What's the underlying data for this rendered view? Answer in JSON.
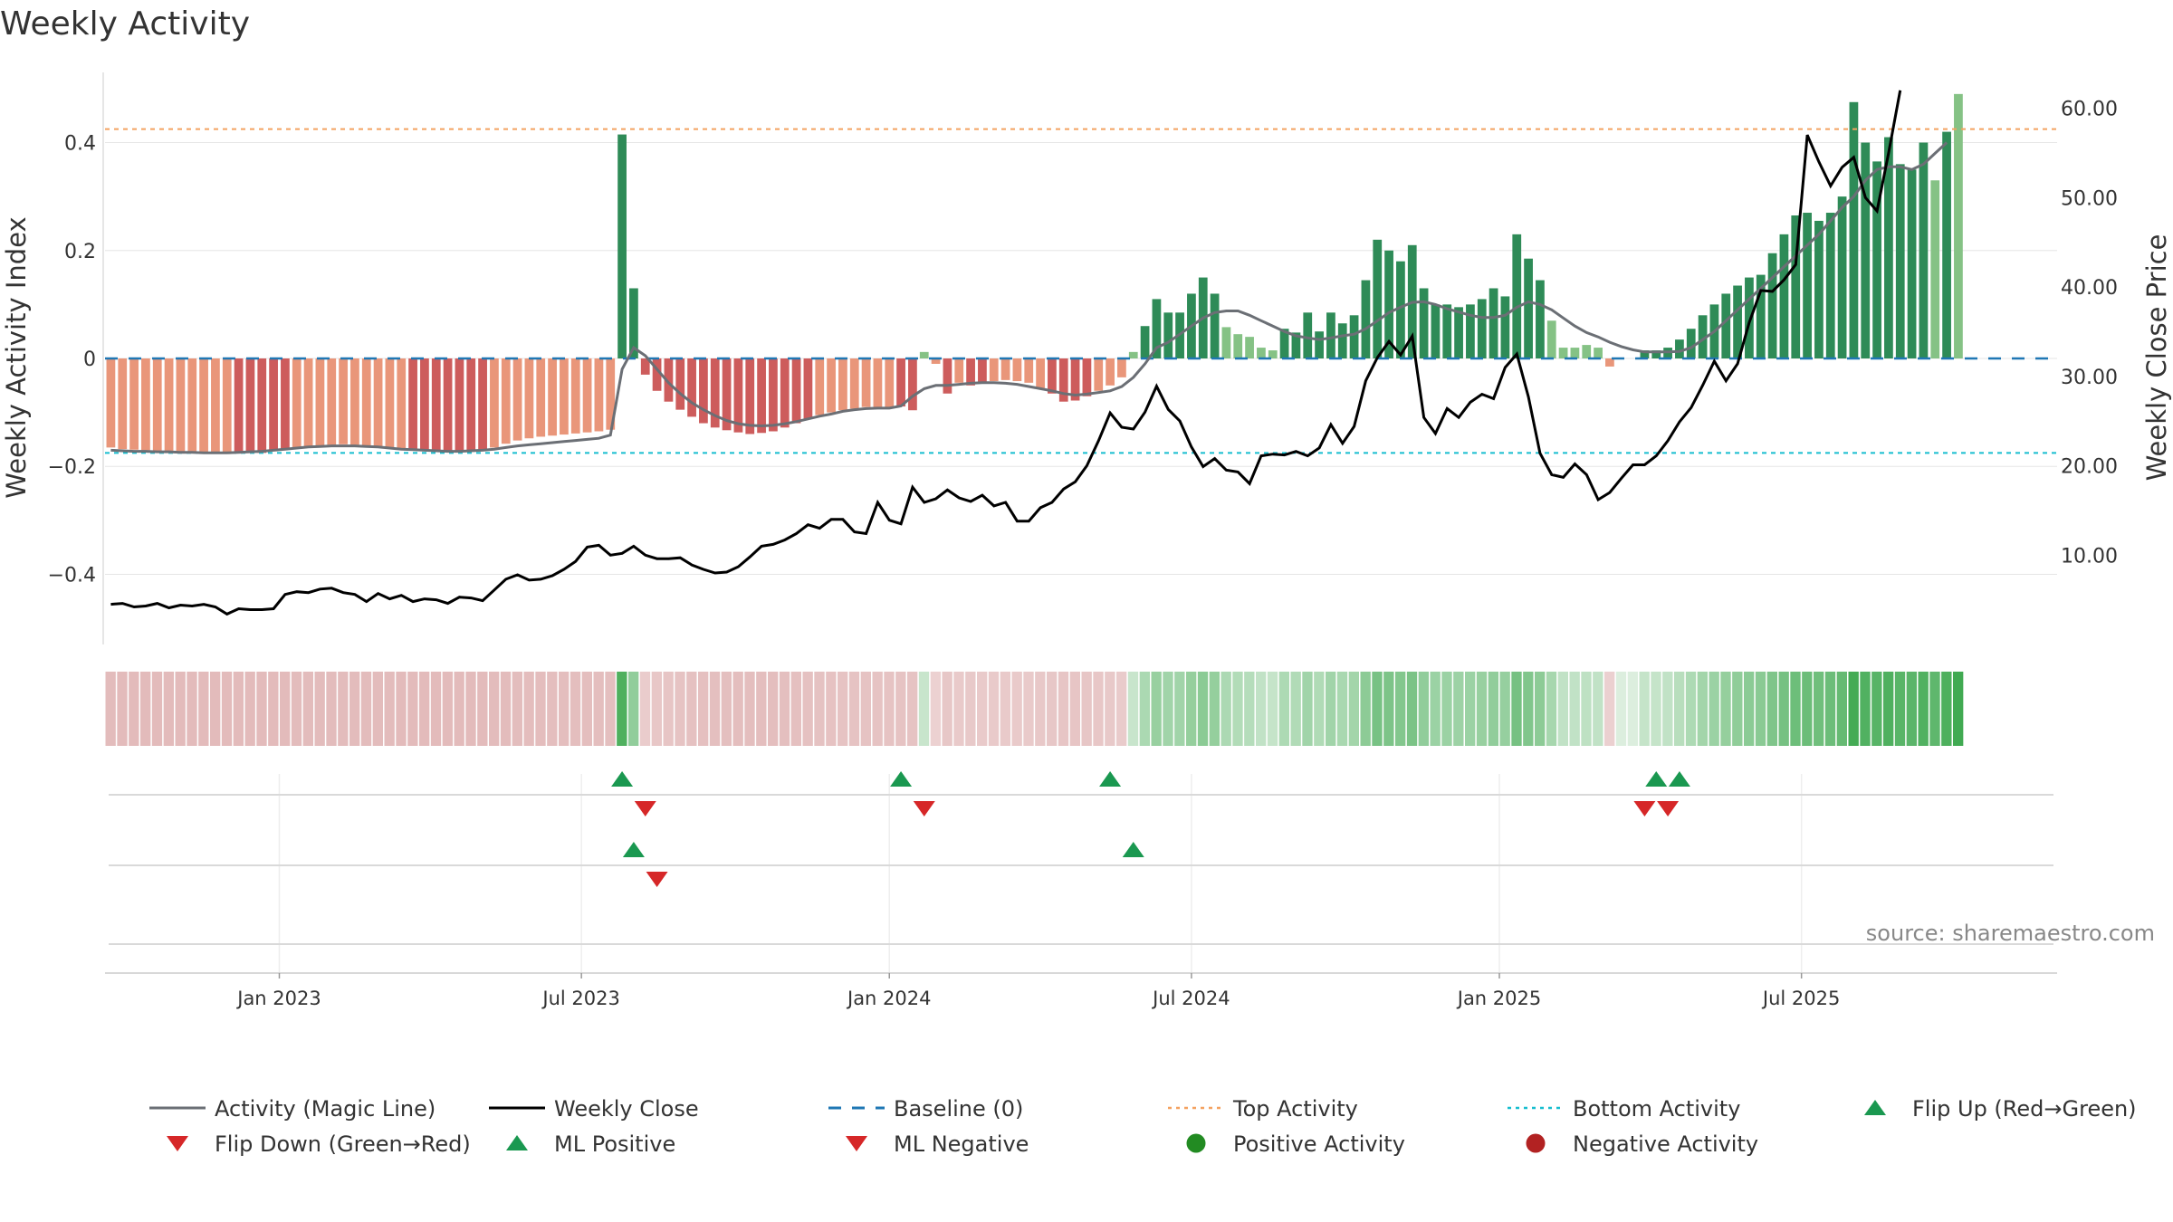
{
  "colors": {
    "magic_line": "#6b6f75",
    "weekly_close": "#000000",
    "baseline": "#1f77b4",
    "top_activity": "#f4a261",
    "bottom_activity": "#17becf",
    "bar_pos_dark": "#2e8b57",
    "bar_pos_light": "#85c285",
    "bar_neg_dark": "#cd5c5c",
    "bar_neg_light": "#e9967a",
    "marker_up": "#1a9850",
    "marker_down": "#d62728",
    "positive_dot": "#228b22",
    "negative_dot": "#b22222",
    "grid": "#e6e6e6",
    "source_text": "#888888"
  },
  "chart_data": {
    "type": "bar",
    "title": "Weekly Activity",
    "ylabel_left": "Weekly Activity Index",
    "ylabel_right": "Weekly Close Price",
    "ylim_left": [
      -0.53,
      0.53
    ],
    "ylim_right": [
      0,
      64
    ],
    "yticks_left": [
      {
        "value": 0.4,
        "label": "0.4"
      },
      {
        "value": 0.2,
        "label": "0.2"
      },
      {
        "value": 0,
        "label": "0"
      },
      {
        "value": -0.2,
        "label": "−0.2"
      },
      {
        "value": -0.4,
        "label": "−0.4"
      }
    ],
    "yticks_right": [
      {
        "value": 60,
        "label": "60.00"
      },
      {
        "value": 50,
        "label": "50.00"
      },
      {
        "value": 40,
        "label": "40.00"
      },
      {
        "value": 30,
        "label": "30.00"
      },
      {
        "value": 20,
        "label": "20.00"
      },
      {
        "value": 10,
        "label": "10.00"
      }
    ],
    "x_week_range": [
      0,
      168
    ],
    "xticks": [
      {
        "week": 15,
        "label": "Jan 2023"
      },
      {
        "week": 41,
        "label": "Jul 2023"
      },
      {
        "week": 67.5,
        "label": "Jan 2024"
      },
      {
        "week": 93.5,
        "label": "Jul 2024"
      },
      {
        "week": 120,
        "label": "Jan 2025"
      },
      {
        "week": 146,
        "label": "Jul 2025"
      }
    ],
    "reference_lines": {
      "top_activity": 0.425,
      "bottom_activity": -0.175,
      "baseline": 0
    },
    "activity": [
      -0.165,
      -0.168,
      -0.169,
      -0.17,
      -0.171,
      -0.171,
      -0.172,
      -0.172,
      -0.173,
      -0.173,
      -0.174,
      -0.174,
      -0.175,
      -0.175,
      -0.172,
      -0.168,
      -0.165,
      -0.163,
      -0.161,
      -0.16,
      -0.159,
      -0.16,
      -0.161,
      -0.163,
      -0.165,
      -0.167,
      -0.169,
      -0.171,
      -0.172,
      -0.173,
      -0.173,
      -0.172,
      -0.17,
      -0.165,
      -0.158,
      -0.152,
      -0.148,
      -0.145,
      -0.143,
      -0.141,
      -0.139,
      -0.137,
      -0.135,
      -0.132,
      0.415,
      0.13,
      -0.03,
      -0.06,
      -0.08,
      -0.095,
      -0.108,
      -0.12,
      -0.128,
      -0.133,
      -0.137,
      -0.14,
      -0.138,
      -0.135,
      -0.128,
      -0.12,
      -0.112,
      -0.105,
      -0.1,
      -0.096,
      -0.093,
      -0.09,
      -0.09,
      -0.09,
      -0.089,
      -0.096,
      0.012,
      -0.01,
      -0.065,
      -0.045,
      -0.05,
      -0.045,
      -0.042,
      -0.04,
      -0.042,
      -0.045,
      -0.055,
      -0.065,
      -0.08,
      -0.078,
      -0.07,
      -0.06,
      -0.05,
      -0.035,
      0.012,
      0.06,
      0.11,
      0.085,
      0.085,
      0.12,
      0.15,
      0.12,
      0.058,
      0.045,
      0.04,
      0.02,
      0.015,
      0.055,
      0.048,
      0.085,
      0.05,
      0.085,
      0.065,
      0.08,
      0.145,
      0.22,
      0.2,
      0.18,
      0.21,
      0.13,
      0.1,
      0.1,
      0.095,
      0.1,
      0.11,
      0.13,
      0.115,
      0.23,
      0.185,
      0.145,
      0.07,
      0.02,
      0.02,
      0.025,
      0.02,
      -0.015,
      0.0,
      0.0,
      0.015,
      0.015,
      0.02,
      0.035,
      0.055,
      0.08,
      0.1,
      0.12,
      0.135,
      0.15,
      0.155,
      0.195,
      0.23,
      0.265,
      0.27,
      0.255,
      0.27,
      0.3,
      0.475,
      0.4,
      0.365,
      0.41,
      0.36,
      0.35,
      0.4,
      0.33,
      0.42,
      0.49
    ],
    "magic_line": [
      -0.17,
      -0.171,
      -0.172,
      -0.172,
      -0.173,
      -0.173,
      -0.174,
      -0.174,
      -0.175,
      -0.175,
      -0.175,
      -0.174,
      -0.173,
      -0.172,
      -0.17,
      -0.168,
      -0.166,
      -0.164,
      -0.163,
      -0.162,
      -0.162,
      -0.162,
      -0.163,
      -0.164,
      -0.166,
      -0.168,
      -0.169,
      -0.17,
      -0.171,
      -0.172,
      -0.172,
      -0.171,
      -0.17,
      -0.168,
      -0.165,
      -0.162,
      -0.16,
      -0.158,
      -0.156,
      -0.154,
      -0.152,
      -0.15,
      -0.148,
      -0.142,
      -0.02,
      0.02,
      0.005,
      -0.02,
      -0.045,
      -0.065,
      -0.082,
      -0.095,
      -0.106,
      -0.115,
      -0.121,
      -0.124,
      -0.125,
      -0.124,
      -0.121,
      -0.117,
      -0.112,
      -0.107,
      -0.103,
      -0.098,
      -0.095,
      -0.093,
      -0.092,
      -0.092,
      -0.088,
      -0.07,
      -0.056,
      -0.05,
      -0.05,
      -0.048,
      -0.046,
      -0.045,
      -0.045,
      -0.046,
      -0.048,
      -0.052,
      -0.056,
      -0.06,
      -0.065,
      -0.068,
      -0.066,
      -0.063,
      -0.06,
      -0.052,
      -0.035,
      -0.01,
      0.02,
      0.03,
      0.045,
      0.06,
      0.075,
      0.085,
      0.088,
      0.088,
      0.08,
      0.07,
      0.06,
      0.05,
      0.042,
      0.038,
      0.035,
      0.038,
      0.042,
      0.045,
      0.055,
      0.07,
      0.085,
      0.095,
      0.104,
      0.105,
      0.1,
      0.092,
      0.086,
      0.08,
      0.076,
      0.076,
      0.08,
      0.095,
      0.105,
      0.1,
      0.09,
      0.075,
      0.06,
      0.048,
      0.04,
      0.03,
      0.022,
      0.016,
      0.012,
      0.012,
      0.012,
      0.013,
      0.02,
      0.035,
      0.05,
      0.07,
      0.09,
      0.11,
      0.13,
      0.15,
      0.17,
      0.19,
      0.21,
      0.23,
      0.255,
      0.28,
      0.3,
      0.33,
      0.35,
      0.355,
      0.355,
      0.35,
      0.36,
      0.38,
      0.4
    ],
    "weekly_close": [
      4.5,
      4.6,
      4.2,
      4.3,
      4.6,
      4.1,
      4.4,
      4.3,
      4.5,
      4.2,
      3.4,
      4.0,
      3.9,
      3.9,
      4.0,
      5.6,
      5.9,
      5.8,
      6.2,
      6.3,
      5.8,
      5.6,
      4.8,
      5.7,
      5.1,
      5.5,
      4.8,
      5.1,
      5.0,
      4.6,
      5.3,
      5.2,
      4.9,
      6.1,
      7.3,
      7.8,
      7.2,
      7.3,
      7.7,
      8.4,
      9.3,
      10.9,
      11.1,
      10.0,
      10.2,
      11.0,
      10.0,
      9.6,
      9.6,
      9.7,
      8.9,
      8.4,
      8.0,
      8.1,
      8.7,
      9.8,
      11.0,
      11.2,
      11.7,
      12.4,
      13.4,
      13.0,
      14.0,
      14.0,
      12.6,
      12.4,
      15.9,
      13.9,
      13.5,
      17.6,
      15.9,
      16.3,
      17.3,
      16.4,
      16.0,
      16.7,
      15.5,
      15.9,
      13.8,
      13.8,
      15.3,
      15.9,
      17.4,
      18.2,
      20.0,
      22.8,
      25.9,
      24.3,
      24.1,
      26.0,
      28.9,
      26.3,
      25.0,
      22.1,
      19.9,
      20.8,
      19.5,
      19.3,
      18.0,
      21.1,
      21.3,
      21.2,
      21.6,
      21.1,
      22.0,
      24.6,
      22.5,
      24.4,
      29.5,
      32.1,
      33.9,
      32.4,
      34.5,
      25.4,
      23.6,
      26.4,
      25.4,
      27.1,
      28.0,
      27.5,
      31.0,
      32.5,
      27.7,
      21.4,
      19.0,
      18.7,
      20.2,
      19.0,
      16.2,
      17.0,
      18.6,
      20.1,
      20.1,
      21.1,
      22.8,
      24.9,
      26.5,
      29.0,
      31.7,
      29.5,
      31.4,
      36.0,
      39.6,
      39.5,
      40.8,
      42.5,
      57.0,
      54.0,
      51.3,
      53.4,
      54.5,
      50.0,
      48.5,
      55.0,
      62.0
    ],
    "flip_up": [
      44,
      68,
      86,
      133,
      135
    ],
    "flip_down": [
      46,
      70,
      132,
      134
    ],
    "ml_positive": [
      45,
      88
    ],
    "ml_negative": [
      47
    ],
    "legend": [
      {
        "label": "Activity (Magic Line)",
        "icon": "line"
      },
      {
        "label": "Weekly Close",
        "icon": "line"
      },
      {
        "label": "Baseline (0)",
        "icon": "dash"
      },
      {
        "label": "Top Activity",
        "icon": "dot-line"
      },
      {
        "label": "Bottom Activity",
        "icon": "dot-line"
      },
      {
        "label": "Flip Up (Red→Green)",
        "icon": "triangle-up"
      },
      {
        "label": "Flip Down (Green→Red)",
        "icon": "triangle-down"
      },
      {
        "label": "ML Positive",
        "icon": "triangle-up"
      },
      {
        "label": "ML Negative",
        "icon": "triangle-down"
      },
      {
        "label": "Positive Activity",
        "icon": "circle"
      },
      {
        "label": "Negative Activity",
        "icon": "circle"
      }
    ],
    "source": "source: sharemaestro.com"
  }
}
